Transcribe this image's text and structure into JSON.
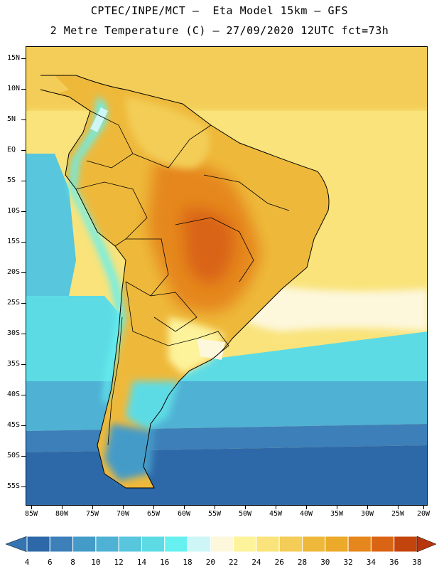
{
  "header": {
    "line1": "CPTEC/INPE/MCT –  Eta Model 15km – GFS",
    "line2": "2 Metre Temperature (C) – 27/09/2020 12UTC fct=73h"
  },
  "map": {
    "lat_labels": [
      "15N",
      "10N",
      "5N",
      "EQ",
      "5S",
      "10S",
      "15S",
      "20S",
      "25S",
      "30S",
      "35S",
      "40S",
      "45S",
      "50S",
      "55S"
    ],
    "lon_labels": [
      "85W",
      "80W",
      "75W",
      "70W",
      "65W",
      "60W",
      "55W",
      "50W",
      "45W",
      "40W",
      "35W",
      "30W",
      "25W",
      "20W"
    ]
  },
  "colorbar": {
    "labels": [
      "4",
      "6",
      "8",
      "10",
      "12",
      "14",
      "16",
      "18",
      "20",
      "22",
      "24",
      "26",
      "28",
      "30",
      "32",
      "34",
      "36",
      "38"
    ],
    "colors": [
      "#2d68a8",
      "#3c7fb9",
      "#449bc8",
      "#4fb1d4",
      "#58c6dc",
      "#5ddbe4",
      "#66f0f0",
      "#cef6f7",
      "#fdf7dc",
      "#fdf39b",
      "#f9e37a",
      "#f3cd57",
      "#eeb93b",
      "#ebaa2a",
      "#e5871c",
      "#d96414",
      "#c4440d"
    ],
    "low_color": "#3474b0",
    "high_color": "#b8360e"
  }
}
